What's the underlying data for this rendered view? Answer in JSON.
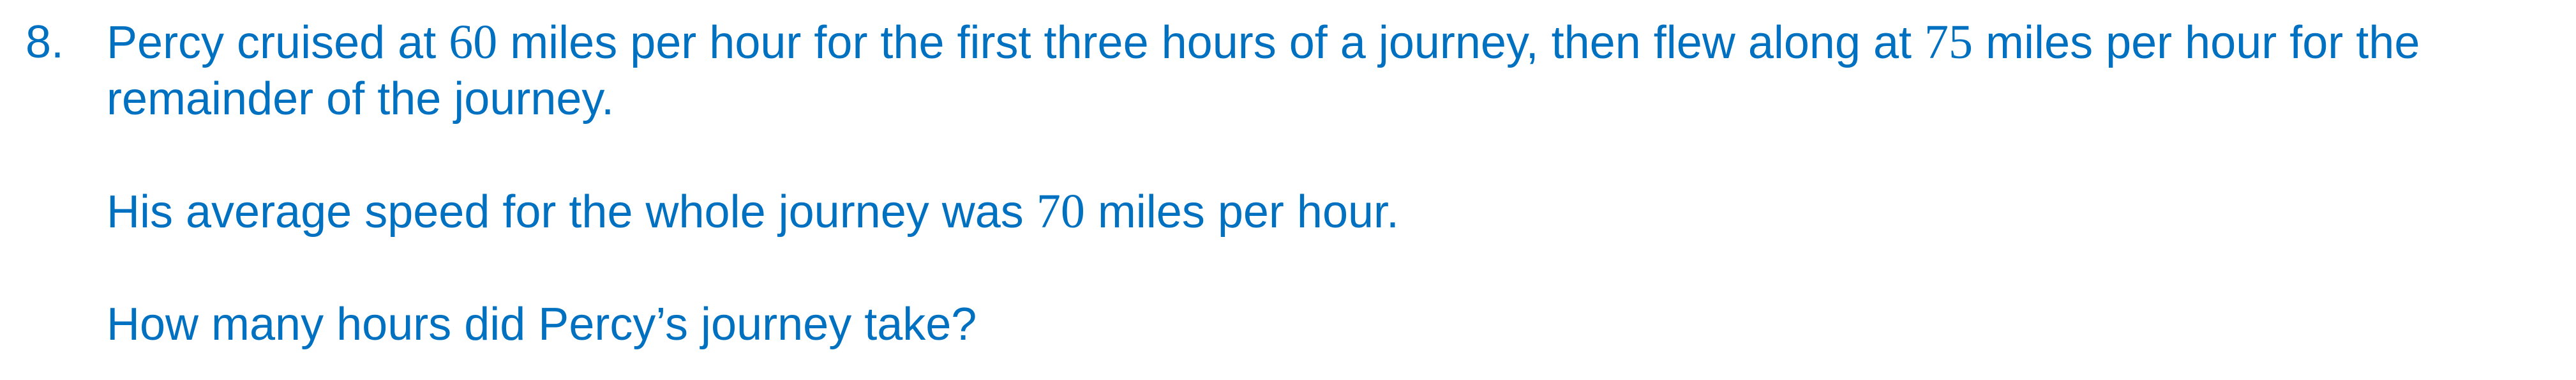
{
  "question": {
    "number": "8.",
    "paragraph1": {
      "part1": "Percy cruised at ",
      "value1": "60",
      "part2": " miles per hour for the first three hours of a journey, then flew along at ",
      "value2": "75",
      "part3": " miles per hour for the remainder of the journey."
    },
    "paragraph2": {
      "part1": "His average speed for the whole journey was ",
      "value1": "70",
      "part2": " miles per hour."
    },
    "paragraph3": {
      "text": "How many hours did Percy’s journey take?"
    }
  },
  "colors": {
    "text": "#0070c0",
    "background": "#ffffff"
  }
}
